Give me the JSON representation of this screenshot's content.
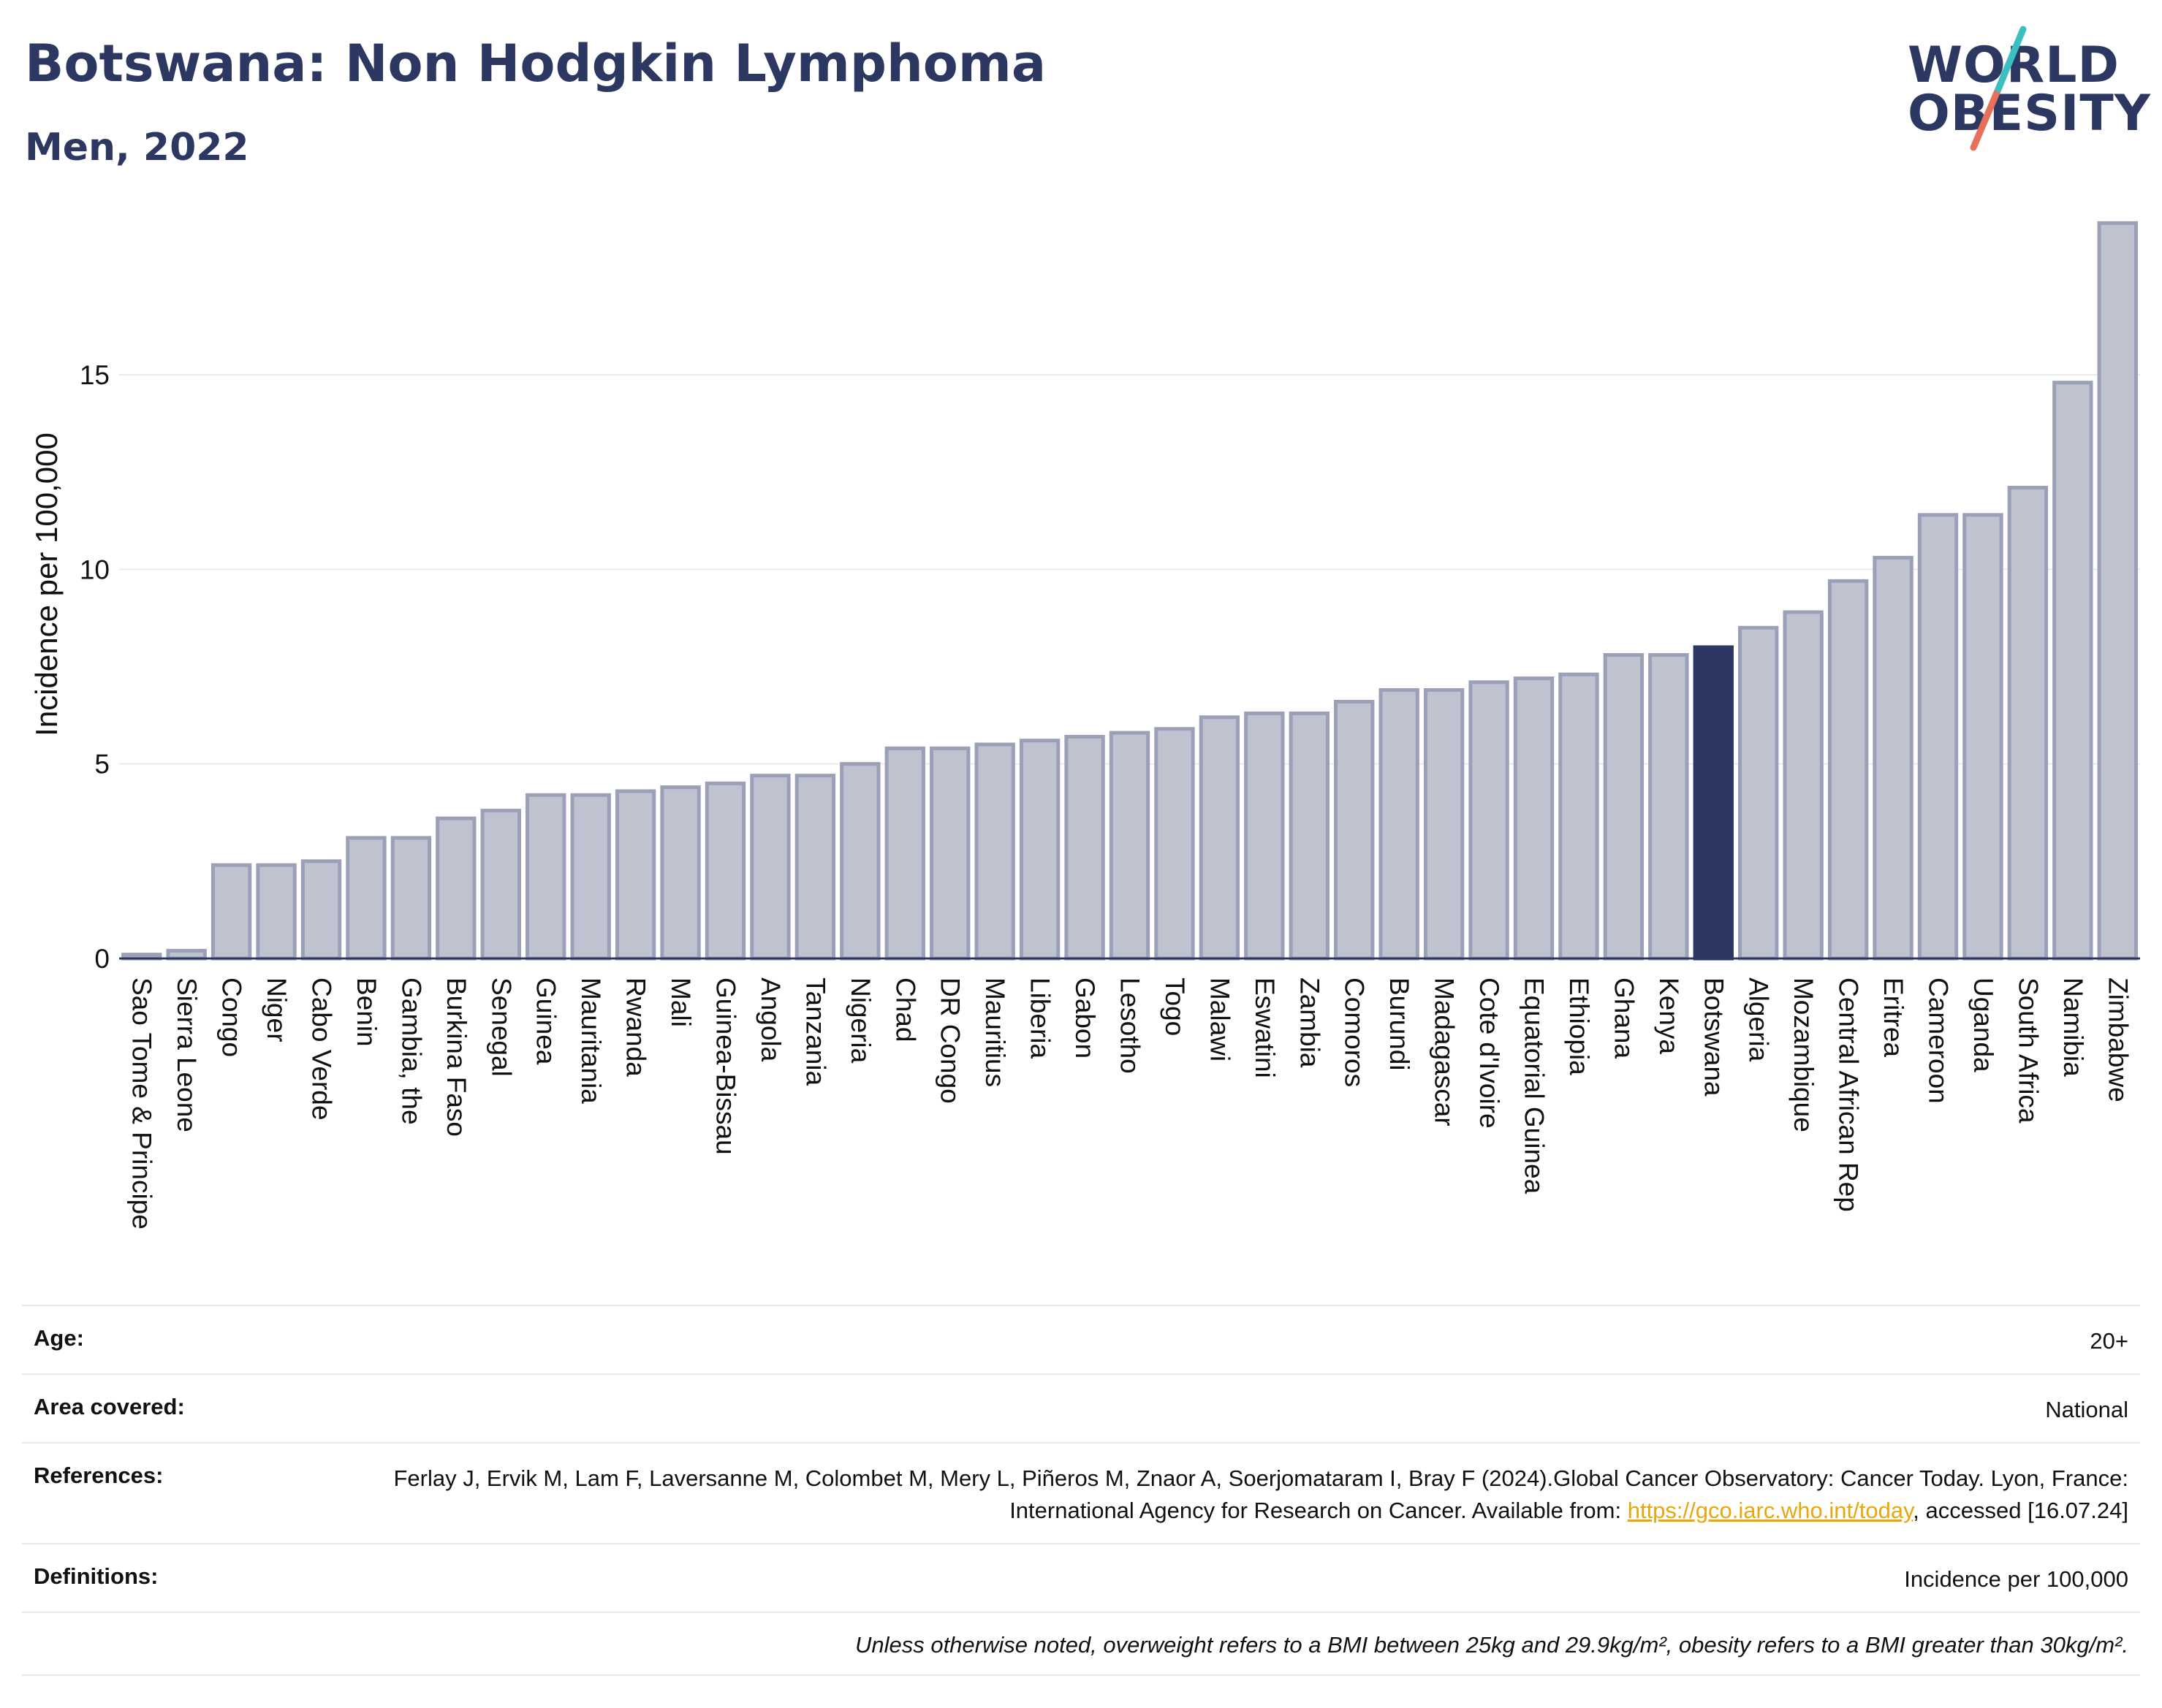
{
  "header": {
    "title": "Botswana: Non Hodgkin Lymphoma",
    "subtitle": "Men, 2022"
  },
  "logo": {
    "line1": "WORLD",
    "line2": "OBESITY"
  },
  "chart_data": {
    "type": "bar",
    "title": "Botswana: Non Hodgkin Lymphoma",
    "subtitle": "Men, 2022",
    "ylabel": "Incidence per 100,000",
    "xlabel": "",
    "ylim": [
      0,
      19
    ],
    "yticks": [
      0,
      5,
      10,
      15
    ],
    "grid": true,
    "highlight": "Botswana",
    "colors": {
      "bar": "#bfc3d0",
      "bar_edge": "#9aa0b8",
      "highlight": "#2d3862"
    },
    "categories": [
      "Sao Tome & Principe",
      "Sierra Leone",
      "Congo",
      "Niger",
      "Cabo Verde",
      "Benin",
      "Gambia, the",
      "Burkina Faso",
      "Senegal",
      "Guinea",
      "Mauritania",
      "Rwanda",
      "Mali",
      "Guinea-Bissau",
      "Angola",
      "Tanzania",
      "Nigeria",
      "Chad",
      "DR Congo",
      "Mauritius",
      "Liberia",
      "Gabon",
      "Lesotho",
      "Togo",
      "Malawi",
      "Eswatini",
      "Zambia",
      "Comoros",
      "Burundi",
      "Madagascar",
      "Cote d'Ivoire",
      "Equatorial Guinea",
      "Ethiopia",
      "Ghana",
      "Kenya",
      "Botswana",
      "Algeria",
      "Mozambique",
      "Central African Rep",
      "Eritrea",
      "Cameroon",
      "Uganda",
      "South Africa",
      "Namibia",
      "Zimbabwe"
    ],
    "values": [
      0.1,
      0.2,
      2.4,
      2.4,
      2.5,
      3.1,
      3.1,
      3.6,
      3.8,
      4.2,
      4.2,
      4.3,
      4.4,
      4.5,
      4.7,
      4.7,
      5.0,
      5.4,
      5.4,
      5.5,
      5.6,
      5.7,
      5.8,
      5.9,
      6.2,
      6.3,
      6.3,
      6.6,
      6.9,
      6.9,
      7.1,
      7.2,
      7.3,
      7.8,
      7.8,
      8.0,
      8.5,
      8.9,
      9.7,
      10.3,
      11.4,
      11.4,
      12.1,
      14.8,
      18.9
    ]
  },
  "meta": {
    "age_label": "Age:",
    "age_value": "20+",
    "area_label": "Area covered:",
    "area_value": "National",
    "ref_label": "References:",
    "ref_text_before": "Ferlay J, Ervik M, Lam F, Laversanne M, Colombet M, Mery L, Piñeros M, Znaor A, Soerjomataram I, Bray F (2024).Global Cancer Observatory: Cancer Today. Lyon, France: International Agency for Research on Cancer. Available from: ",
    "ref_link": "https://gco.iarc.who.int/today",
    "ref_text_after": ", accessed [16.07.24]",
    "def_label": "Definitions:",
    "def_value": "Incidence per 100,000",
    "note": "Unless otherwise noted, overweight refers to a BMI between 25kg and 29.9kg/m², obesity refers to a BMI greater than 30kg/m²."
  }
}
